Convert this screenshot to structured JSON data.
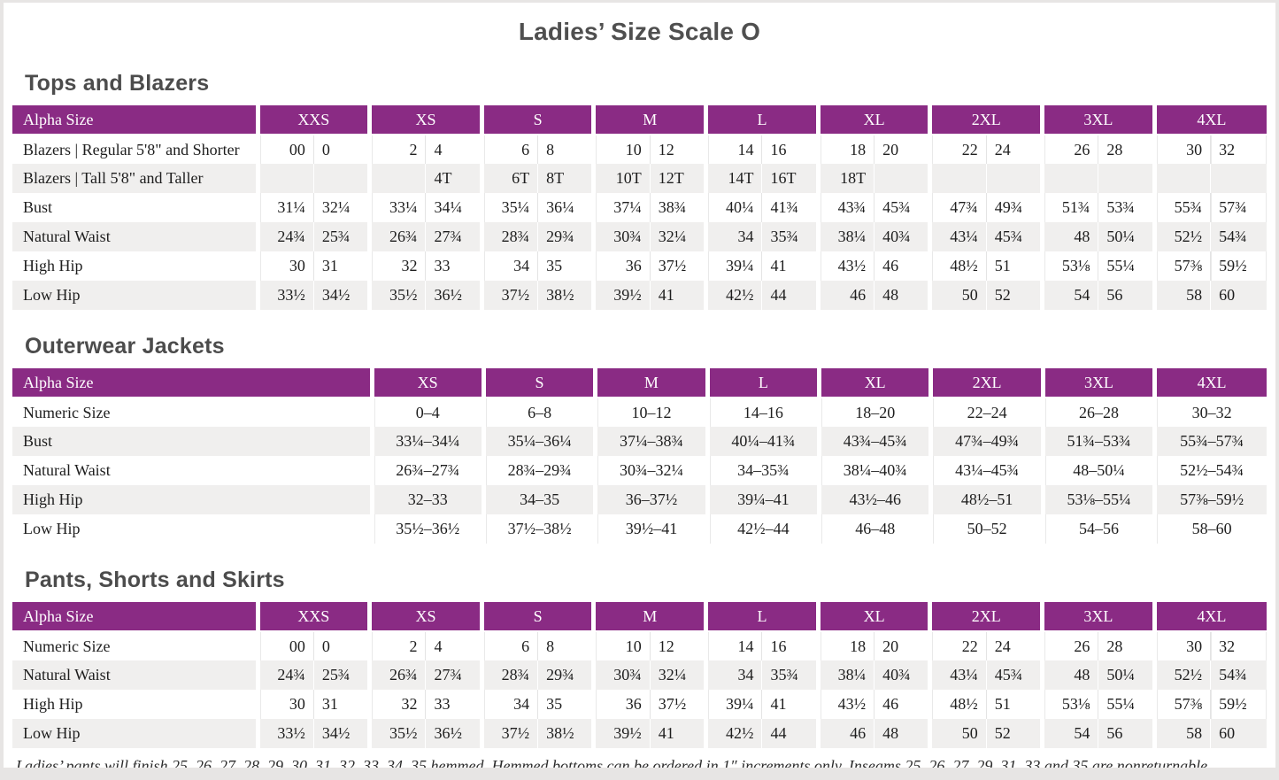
{
  "page": {
    "title": "Ladies’ Size Scale O",
    "footnote": "Ladies’ pants will finish 25, 26, 27, 28, 29, 30, 31, 32, 33, 34, 35 hemmed. Hemmed bottoms can be ordered in 1″ increments only. Inseams 25, 26, 27, 29, 31, 33 and 35 are nonreturnable."
  },
  "colors": {
    "header_bg": "#8a2b84",
    "header_text": "#ffffff",
    "stripe": "#f0efee",
    "heading_text": "#4c4c4c",
    "frame": "#e7e5e4",
    "divider": "#e4e4e4"
  },
  "tables": [
    {
      "id": "tops-and-blazers",
      "heading": "Tops and Blazers",
      "type": "grouped",
      "header_label": "Alpha Size",
      "groups": [
        "XXS",
        "XS",
        "S",
        "M",
        "L",
        "XL",
        "2XL",
        "3XL",
        "4XL"
      ],
      "rows": [
        {
          "label": "Blazers | Regular 5'8\" and Shorter",
          "values": [
            "00",
            "0",
            "2",
            "4",
            "6",
            "8",
            "10",
            "12",
            "14",
            "16",
            "18",
            "20",
            "22",
            "24",
            "26",
            "28",
            "30",
            "32"
          ]
        },
        {
          "label": "Blazers | Tall 5'8\" and Taller",
          "values": [
            "",
            "",
            "",
            "4T",
            "6T",
            "8T",
            "10T",
            "12T",
            "14T",
            "16T",
            "18T",
            "",
            "",
            "",
            "",
            "",
            "",
            ""
          ]
        },
        {
          "label": "Bust",
          "values": [
            "31¼",
            "32¼",
            "33¼",
            "34¼",
            "35¼",
            "36¼",
            "37¼",
            "38¾",
            "40¼",
            "41¾",
            "43¾",
            "45¾",
            "47¾",
            "49¾",
            "51¾",
            "53¾",
            "55¾",
            "57¾"
          ]
        },
        {
          "label": "Natural Waist",
          "values": [
            "24¾",
            "25¾",
            "26¾",
            "27¾",
            "28¾",
            "29¾",
            "30¾",
            "32¼",
            "34",
            "35¾",
            "38¼",
            "40¾",
            "43¼",
            "45¾",
            "48",
            "50¼",
            "52½",
            "54¾"
          ]
        },
        {
          "label": "High Hip",
          "values": [
            "30",
            "31",
            "32",
            "33",
            "34",
            "35",
            "36",
            "37½",
            "39¼",
            "41",
            "43½",
            "46",
            "48½",
            "51",
            "53⅛",
            "55¼",
            "57⅜",
            "59½"
          ]
        },
        {
          "label": "Low Hip",
          "values": [
            "33½",
            "34½",
            "35½",
            "36½",
            "37½",
            "38½",
            "39½",
            "41",
            "42½",
            "44",
            "46",
            "48",
            "50",
            "52",
            "54",
            "56",
            "58",
            "60"
          ]
        }
      ]
    },
    {
      "id": "outerwear-jackets",
      "heading": "Outerwear Jackets",
      "type": "ranged",
      "header_label": "Alpha Size",
      "groups": [
        "XS",
        "S",
        "M",
        "L",
        "XL",
        "2XL",
        "3XL",
        "4XL"
      ],
      "rows": [
        {
          "label": "Numeric Size",
          "values": [
            "0–4",
            "6–8",
            "10–12",
            "14–16",
            "18–20",
            "22–24",
            "26–28",
            "30–32"
          ]
        },
        {
          "label": "Bust",
          "values": [
            "33¼–34¼",
            "35¼–36¼",
            "37¼–38¾",
            "40¼–41¾",
            "43¾–45¾",
            "47¾–49¾",
            "51¾–53¾",
            "55¾–57¾"
          ]
        },
        {
          "label": "Natural Waist",
          "values": [
            "26¾–27¾",
            "28¾–29¾",
            "30¾–32¼",
            "34–35¾",
            "38¼–40¾",
            "43¼–45¾",
            "48–50¼",
            "52½–54¾"
          ]
        },
        {
          "label": "High Hip",
          "values": [
            "32–33",
            "34–35",
            "36–37½",
            "39¼–41",
            "43½–46",
            "48½–51",
            "53⅛–55¼",
            "57⅜–59½"
          ]
        },
        {
          "label": "Low Hip",
          "values": [
            "35½–36½",
            "37½–38½",
            "39½–41",
            "42½–44",
            "46–48",
            "50–52",
            "54–56",
            "58–60"
          ]
        }
      ]
    },
    {
      "id": "pants-shorts-and-skirts",
      "heading": "Pants, Shorts and Skirts",
      "type": "grouped",
      "header_label": "Alpha Size",
      "groups": [
        "XXS",
        "XS",
        "S",
        "M",
        "L",
        "XL",
        "2XL",
        "3XL",
        "4XL"
      ],
      "rows": [
        {
          "label": "Numeric Size",
          "values": [
            "00",
            "0",
            "2",
            "4",
            "6",
            "8",
            "10",
            "12",
            "14",
            "16",
            "18",
            "20",
            "22",
            "24",
            "26",
            "28",
            "30",
            "32"
          ]
        },
        {
          "label": "Natural Waist",
          "values": [
            "24¾",
            "25¾",
            "26¾",
            "27¾",
            "28¾",
            "29¾",
            "30¾",
            "32¼",
            "34",
            "35¾",
            "38¼",
            "40¾",
            "43¼",
            "45¾",
            "48",
            "50¼",
            "52½",
            "54¾"
          ]
        },
        {
          "label": "High Hip",
          "values": [
            "30",
            "31",
            "32",
            "33",
            "34",
            "35",
            "36",
            "37½",
            "39¼",
            "41",
            "43½",
            "46",
            "48½",
            "51",
            "53⅛",
            "55¼",
            "57⅜",
            "59½"
          ]
        },
        {
          "label": "Low Hip",
          "values": [
            "33½",
            "34½",
            "35½",
            "36½",
            "37½",
            "38½",
            "39½",
            "41",
            "42½",
            "44",
            "46",
            "48",
            "50",
            "52",
            "54",
            "56",
            "58",
            "60"
          ]
        }
      ]
    }
  ]
}
